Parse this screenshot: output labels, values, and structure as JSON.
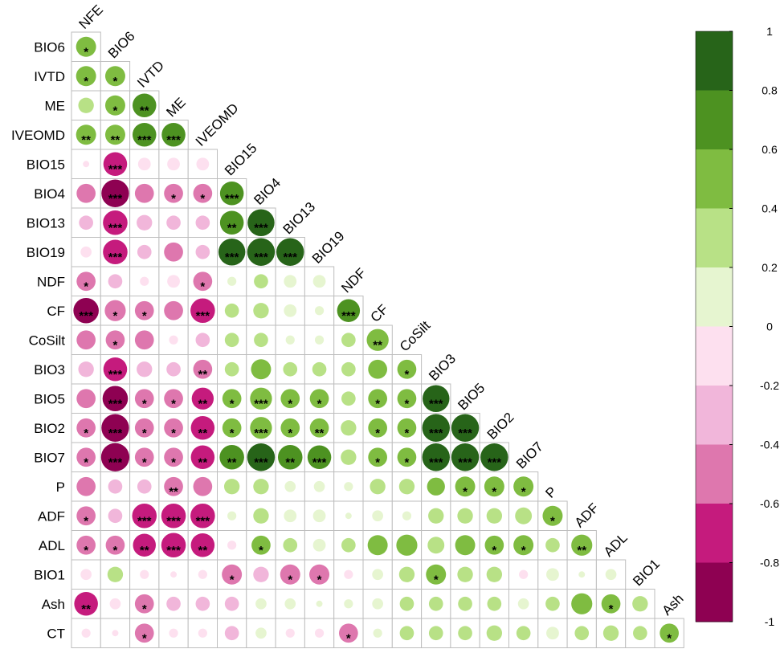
{
  "chart_data": {
    "type": "heatmap",
    "title": "",
    "style": "lower-triangular correlation circle plot (corrplot)",
    "variables": [
      "NFE",
      "BIO6",
      "IVTD",
      "ME",
      "IVEOMD",
      "BIO15",
      "BIO4",
      "BIO13",
      "BIO19",
      "NDF",
      "CF",
      "CoSilt",
      "BIO3",
      "BIO5",
      "BIO2",
      "BIO7",
      "P",
      "ADF",
      "ADL",
      "BIO1",
      "Ash",
      "CT"
    ],
    "row_labels": [
      "BIO6",
      "IVTD",
      "ME",
      "IVEOMD",
      "BIO15",
      "BIO4",
      "BIO13",
      "BIO19",
      "NDF",
      "CF",
      "CoSilt",
      "BIO3",
      "BIO5",
      "BIO2",
      "BIO7",
      "P",
      "ADF",
      "ADL",
      "BIO1",
      "Ash",
      "CT"
    ],
    "diagonal_labels": [
      "NFE",
      "BIO6",
      "IVTD",
      "ME",
      "IVEOMD",
      "BIO15",
      "BIO4",
      "BIO13",
      "BIO19",
      "NDF",
      "CF",
      "CoSilt",
      "BIO3",
      "BIO5",
      "BIO2",
      "BIO7",
      "P",
      "ADF",
      "ADL",
      "BIO1",
      "Ash"
    ],
    "correlations": [
      [
        0.5
      ],
      [
        0.5,
        0.5
      ],
      [
        0.3,
        0.5,
        0.7
      ],
      [
        0.5,
        0.5,
        0.7,
        0.7
      ],
      [
        -0.05,
        -0.7,
        -0.2,
        -0.2,
        -0.2
      ],
      [
        -0.45,
        -0.95,
        -0.45,
        -0.45,
        -0.45,
        0.7
      ],
      [
        -0.25,
        -0.75,
        -0.3,
        -0.25,
        -0.25,
        0.7,
        0.9
      ],
      [
        -0.15,
        -0.75,
        -0.25,
        -0.45,
        -0.25,
        0.9,
        0.95,
        0.95
      ],
      [
        -0.45,
        -0.25,
        -0.1,
        -0.2,
        -0.45,
        0.1,
        0.25,
        0.2,
        0.2
      ],
      [
        -0.8,
        -0.55,
        -0.45,
        -0.45,
        -0.75,
        0.25,
        0.3,
        0.2,
        0.1,
        0.65
      ],
      [
        -0.45,
        -0.45,
        -0.45,
        -0.1,
        -0.25,
        0.25,
        0.25,
        0.1,
        0.1,
        0.25,
        0.6
      ],
      [
        -0.3,
        -0.7,
        -0.3,
        -0.25,
        -0.45,
        0.25,
        0.5,
        0.25,
        0.25,
        0.25,
        0.45,
        0.45
      ],
      [
        -0.45,
        -0.8,
        -0.45,
        -0.45,
        -0.6,
        0.45,
        0.6,
        0.45,
        0.45,
        0.25,
        0.45,
        0.45,
        0.9
      ],
      [
        -0.45,
        -0.95,
        -0.45,
        -0.45,
        -0.7,
        0.45,
        0.6,
        0.45,
        0.45,
        0.3,
        0.45,
        0.45,
        0.95,
        0.95
      ],
      [
        -0.45,
        -1.0,
        -0.45,
        -0.45,
        -0.7,
        0.75,
        0.95,
        0.75,
        0.7,
        0.3,
        0.45,
        0.45,
        0.95,
        0.95,
        0.95
      ],
      [
        -0.45,
        -0.25,
        -0.25,
        -0.45,
        -0.45,
        0.3,
        0.3,
        0.15,
        0.15,
        0.1,
        0.3,
        0.3,
        0.4,
        0.5,
        0.5,
        0.5
      ],
      [
        -0.45,
        -0.25,
        -0.75,
        -0.75,
        -0.75,
        0.1,
        0.3,
        0.2,
        0.2,
        0.05,
        0.15,
        0.1,
        0.3,
        0.3,
        0.3,
        0.35,
        0.5
      ],
      [
        -0.45,
        -0.45,
        -0.65,
        -0.75,
        -0.7,
        -0.1,
        0.45,
        0.25,
        0.2,
        0.25,
        0.5,
        0.55,
        0.35,
        0.5,
        0.45,
        0.5,
        0.25,
        0.55
      ],
      [
        -0.15,
        0.3,
        -0.1,
        -0.05,
        -0.1,
        -0.5,
        -0.3,
        -0.5,
        -0.5,
        -0.1,
        0.15,
        0.3,
        0.5,
        0.3,
        0.3,
        -0.1,
        0.2,
        0.05,
        0.15
      ],
      [
        -0.7,
        -0.15,
        -0.45,
        -0.25,
        -0.25,
        -0.25,
        0.15,
        0.15,
        0.05,
        0.1,
        0.15,
        0.25,
        0.25,
        0.25,
        0.25,
        0.15,
        0.25,
        0.55,
        0.45,
        0.3
      ],
      [
        -0.1,
        -0.05,
        -0.45,
        -0.1,
        -0.1,
        -0.25,
        0.15,
        -0.1,
        -0.1,
        -0.45,
        0.1,
        0.25,
        0.25,
        0.25,
        0.3,
        0.25,
        0.2,
        0.25,
        0.3,
        0.25,
        0.45
      ]
    ],
    "significance": [
      [
        "*"
      ],
      [
        "*",
        "*"
      ],
      [
        "",
        "*",
        "**"
      ],
      [
        "**",
        "**",
        "***",
        "***"
      ],
      [
        "",
        "***",
        "",
        "",
        ""
      ],
      [
        "",
        "***",
        "",
        "*",
        "*",
        "***"
      ],
      [
        "",
        "***",
        "",
        "",
        "",
        "**",
        "***"
      ],
      [
        "",
        "***",
        "",
        "",
        "",
        "***",
        "***",
        "***"
      ],
      [
        "*",
        "",
        "",
        "",
        "*",
        "",
        "",
        "",
        ""
      ],
      [
        "***",
        "*",
        "*",
        "",
        "***",
        "",
        "",
        "",
        "",
        "***"
      ],
      [
        "",
        "*",
        "",
        "",
        "",
        "",
        "",
        "",
        "",
        "",
        "**"
      ],
      [
        "",
        "***",
        "",
        "",
        "**",
        "",
        "",
        "",
        "",
        "",
        "",
        "*"
      ],
      [
        "",
        "***",
        "*",
        "*",
        "**",
        "*",
        "***",
        "*",
        "*",
        "",
        "*",
        "*",
        "***"
      ],
      [
        "*",
        "***",
        "*",
        "*",
        "**",
        "*",
        "***",
        "*",
        "**",
        "",
        "*",
        "*",
        "***",
        "***"
      ],
      [
        "*",
        "***",
        "*",
        "*",
        "**",
        "**",
        "***",
        "**",
        "***",
        "",
        "*",
        "*",
        "***",
        "***",
        "***"
      ],
      [
        "",
        "",
        "",
        "**",
        "",
        "",
        "",
        "",
        "",
        "",
        "",
        "",
        "",
        "*",
        "*",
        "*"
      ],
      [
        "*",
        "",
        "***",
        "***",
        "***",
        "",
        "",
        "",
        "",
        "",
        "",
        "",
        "",
        "",
        "",
        "",
        "*"
      ],
      [
        "*",
        "*",
        "**",
        "***",
        "**",
        "",
        "*",
        "",
        "",
        "",
        "",
        "",
        "",
        "",
        "*",
        "*",
        "",
        "**"
      ],
      [
        "",
        "",
        "",
        "",
        "",
        "*",
        "",
        "*",
        "*",
        "",
        "",
        "",
        "*",
        "",
        "",
        "",
        "",
        "",
        ""
      ],
      [
        "**",
        "",
        "*",
        "",
        "",
        "",
        "",
        "",
        "",
        "",
        "",
        "",
        "",
        "",
        "",
        "",
        "",
        "",
        "*",
        ""
      ],
      [
        "",
        "",
        "*",
        "",
        "",
        "",
        "",
        "",
        "",
        "*",
        "",
        "",
        "",
        "",
        "",
        "",
        "",
        "",
        "",
        "",
        "*"
      ]
    ],
    "colorbar": {
      "range": [
        -1,
        1
      ],
      "tick_labels": [
        "1",
        "0.8",
        "0.6",
        "0.4",
        "0.2",
        "0",
        "-0.2",
        "-0.4",
        "-0.6",
        "-0.8",
        "-1"
      ],
      "colors_top_to_bottom": [
        "#276419",
        "#4d9221",
        "#7fbc41",
        "#b8e186",
        "#e6f5d0",
        "#fde0ef",
        "#f1b6da",
        "#de77ae",
        "#c51b7d",
        "#8e0152"
      ]
    },
    "colors": {
      "grid": "#bebebe",
      "text": "#000000"
    }
  }
}
